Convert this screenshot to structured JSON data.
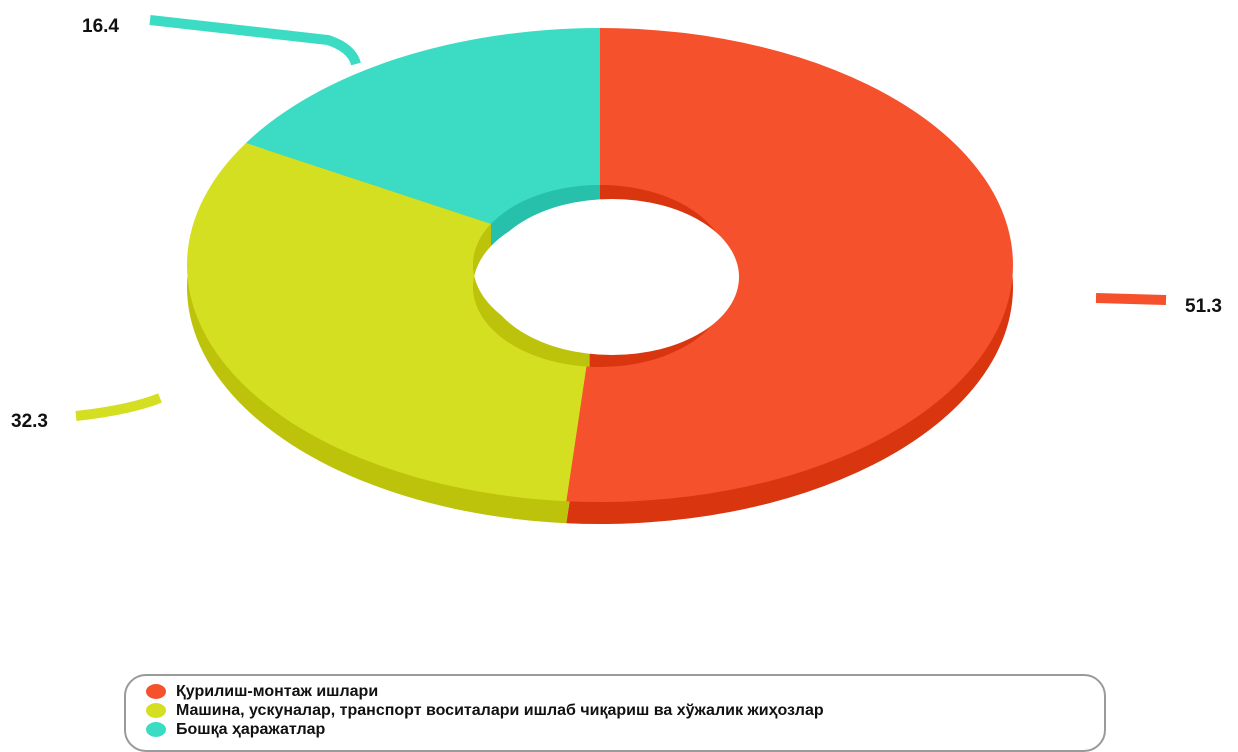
{
  "chart_data": {
    "type": "pie",
    "donut": true,
    "title": "",
    "slices": [
      {
        "label": "Қурилиш-монтаж ишлари",
        "value": 51.3,
        "color": "#f4512c",
        "side_color": "#d9360f"
      },
      {
        "label": "Машина, ускуналар, транспорт воситалари ишлаб чиқариш ва хўжалик жиҳозлар",
        "value": 32.3,
        "color": "#d5df21",
        "side_color": "#bdc20a"
      },
      {
        "label": "Бошқа харажатлар",
        "value": 16.4,
        "color": "#3cdcc4",
        "side_color": "#27c0ab"
      }
    ],
    "data_labels": [
      "51.3",
      "32.3",
      "16.4"
    ],
    "legend_position": "bottom"
  },
  "legend": {
    "items": [
      {
        "label": "Қурилиш-монтаж ишлари",
        "color": "#f4512c"
      },
      {
        "label": "Машина, ускуналар, транспорт воситалари ишлаб чиқариш ва хўжалик жиҳозлар",
        "color": "#d5df21"
      },
      {
        "label": "Бошқа ҳаражатлар",
        "color": "#3cdcc4"
      }
    ]
  }
}
